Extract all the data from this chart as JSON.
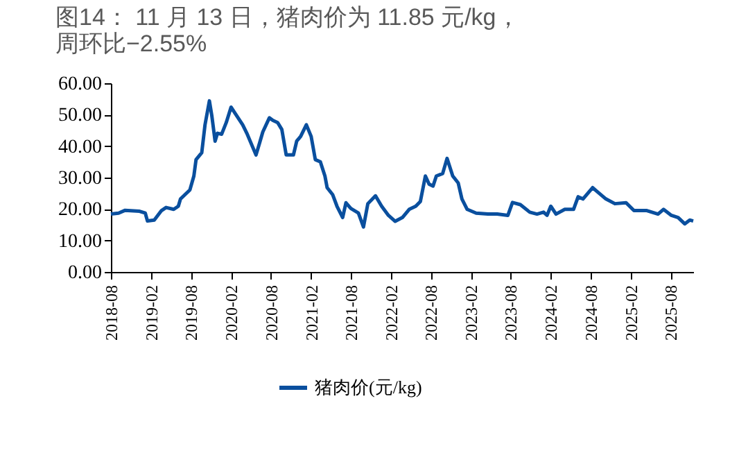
{
  "chart_data": {
    "type": "line",
    "title": "图14：  11 月 13 日，猪肉价为 11.85 元/kg，周环比−2.55%",
    "xlim": [
      "2018-08",
      "2025-11-13"
    ],
    "xticks": [
      "2018-08",
      "2019-02",
      "2019-08",
      "2020-02",
      "2020-08",
      "2021-02",
      "2021-08",
      "2022-02",
      "2022-08",
      "2023-02",
      "2023-08",
      "2024-02",
      "2024-08",
      "2025-02",
      "2025-08"
    ],
    "ylim": [
      0,
      60
    ],
    "yticks": [
      {
        "value": 0,
        "label": "0.00"
      },
      {
        "value": 10,
        "label": "10.00"
      },
      {
        "value": 20,
        "label": "20.00"
      },
      {
        "value": 30,
        "label": "30.00"
      },
      {
        "value": 40,
        "label": "40.00"
      },
      {
        "value": 50,
        "label": "50.00"
      },
      {
        "value": 60,
        "label": "60.00"
      }
    ],
    "legend": "bottom",
    "grid": false,
    "x": [
      "2018-08-01",
      "2018-09-05",
      "2018-10-05",
      "2018-12-10",
      "2019-01-05",
      "2019-01-15",
      "2019-02-15",
      "2019-03-20",
      "2019-04-10",
      "2019-05-15",
      "2019-06-05",
      "2019-06-15",
      "2019-07-28",
      "2019-08-15",
      "2019-08-25",
      "2019-09-20",
      "2019-10-05",
      "2019-10-25",
      "2019-11-05",
      "2019-11-20",
      "2019-12-01",
      "2019-12-20",
      "2020-01-10",
      "2020-02-01",
      "2020-02-20",
      "2020-03-25",
      "2020-04-15",
      "2020-05-25",
      "2020-06-10",
      "2020-06-25",
      "2020-07-25",
      "2020-08-10",
      "2020-09-01",
      "2020-09-20",
      "2020-10-10",
      "2020-11-12",
      "2020-11-27",
      "2020-12-15",
      "2021-01-10",
      "2021-02-01",
      "2021-02-20",
      "2021-03-15",
      "2021-04-05",
      "2021-04-15",
      "2021-05-10",
      "2021-05-30",
      "2021-06-25",
      "2021-07-10",
      "2021-08-01",
      "2021-09-05",
      "2021-09-28",
      "2021-10-18",
      "2021-11-22",
      "2021-12-20",
      "2022-01-20",
      "2022-02-20",
      "2022-03-25",
      "2022-04-25",
      "2022-05-25",
      "2022-06-15",
      "2022-07-08",
      "2022-07-25",
      "2022-08-12",
      "2022-08-27",
      "2022-09-25",
      "2022-10-15",
      "2022-11-10",
      "2022-12-05",
      "2022-12-22",
      "2023-01-15",
      "2023-02-25",
      "2023-04-20",
      "2023-06-01",
      "2023-07-20",
      "2023-08-10",
      "2023-09-15",
      "2023-10-28",
      "2023-11-30",
      "2023-12-30",
      "2024-01-15",
      "2024-02-01",
      "2024-02-25",
      "2024-04-05",
      "2024-05-15",
      "2024-06-05",
      "2024-06-27",
      "2024-08-10",
      "2024-08-27",
      "2024-10-10",
      "2024-11-20",
      "2025-01-10",
      "2025-02-15",
      "2025-04-15",
      "2025-06-05",
      "2025-06-30",
      "2025-08-05",
      "2025-09-05",
      "2025-10-05",
      "2025-10-28",
      "2025-11-13"
    ],
    "series": [
      {
        "name": "猪肉价(元/kg)",
        "color": "#0a4f9e",
        "values": [
          18.4,
          18.7,
          19.6,
          19.3,
          18.7,
          16.2,
          16.5,
          19.5,
          20.5,
          19.9,
          20.9,
          23.2,
          26.1,
          30.5,
          35.7,
          37.9,
          46.8,
          54.4,
          49.7,
          41.6,
          44.1,
          43.8,
          47.5,
          52.4,
          50.4,
          46.8,
          43.8,
          37.2,
          40.9,
          44.5,
          49.0,
          48.2,
          47.5,
          45.3,
          37.2,
          37.2,
          41.6,
          43.1,
          46.8,
          43.1,
          35.7,
          35.0,
          30.5,
          26.8,
          24.6,
          20.9,
          17.3,
          22.0,
          20.2,
          18.7,
          14.3,
          21.7,
          24.2,
          20.9,
          18.0,
          16.1,
          17.3,
          19.9,
          20.9,
          22.4,
          30.5,
          27.9,
          27.3,
          30.5,
          31.3,
          36.1,
          30.5,
          28.3,
          23.2,
          19.9,
          18.7,
          18.4,
          18.4,
          18.0,
          22.1,
          21.4,
          19.0,
          18.4,
          19.0,
          18.0,
          20.9,
          18.4,
          19.9,
          19.9,
          23.9,
          23.2,
          26.8,
          25.8,
          23.2,
          21.7,
          22.0,
          19.5,
          19.5,
          18.4,
          19.9,
          18.0,
          17.3,
          15.3,
          16.5,
          16.2
        ]
      }
    ]
  }
}
